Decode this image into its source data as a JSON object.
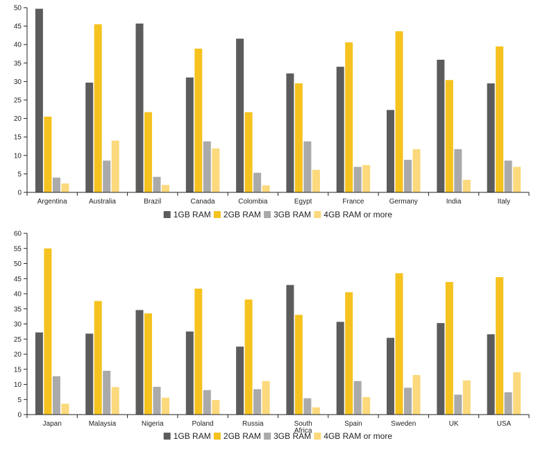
{
  "series_colors": [
    "#5c5c5c",
    "#f5c21f",
    "#aaaaaa",
    "#fbd97c"
  ],
  "chart_data": [
    {
      "type": "bar",
      "title": "",
      "xlabel": "",
      "ylabel": "",
      "ylim": [
        0,
        50
      ],
      "yticks": [
        0,
        5,
        10,
        15,
        20,
        25,
        30,
        35,
        40,
        45,
        50
      ],
      "legend_position": "bottom-center",
      "categories": [
        "Argentina",
        "Australia",
        "Brazil",
        "Canada",
        "Colombia",
        "Egypt",
        "France",
        "Germany",
        "India",
        "Italy"
      ],
      "series": [
        {
          "name": "1GB RAM",
          "values": [
            49.7,
            29.7,
            45.7,
            31.1,
            41.6,
            32.2,
            34.0,
            22.3,
            35.9,
            29.5
          ]
        },
        {
          "name": "2GB RAM",
          "values": [
            20.5,
            45.5,
            21.7,
            38.9,
            21.7,
            29.5,
            40.6,
            43.6,
            30.4,
            39.5
          ]
        },
        {
          "name": "3GB RAM",
          "values": [
            4.0,
            8.6,
            4.2,
            13.8,
            5.3,
            13.8,
            6.9,
            8.8,
            11.7,
            8.6
          ]
        },
        {
          "name": "4GB RAM or more",
          "values": [
            2.4,
            14.0,
            2.0,
            11.9,
            1.9,
            6.1,
            7.4,
            11.7,
            3.4,
            6.9
          ]
        }
      ]
    },
    {
      "type": "bar",
      "title": "",
      "xlabel": "",
      "ylabel": "",
      "ylim": [
        0,
        60
      ],
      "yticks": [
        0,
        5,
        10,
        15,
        20,
        25,
        30,
        35,
        40,
        45,
        50,
        55,
        60
      ],
      "legend_position": "bottom-center",
      "categories": [
        "Japan",
        "Malaysia",
        "Nigeria",
        "Poland",
        "Russia",
        "South Africa",
        "Spain",
        "Sweden",
        "UK",
        "USA"
      ],
      "series": [
        {
          "name": "1GB RAM",
          "values": [
            27.2,
            26.8,
            34.6,
            27.5,
            22.5,
            42.9,
            30.7,
            25.4,
            30.3,
            26.6
          ]
        },
        {
          "name": "2GB RAM",
          "values": [
            55.0,
            37.6,
            33.5,
            41.7,
            38.1,
            33.0,
            40.5,
            46.8,
            43.9,
            45.5
          ]
        },
        {
          "name": "3GB RAM",
          "values": [
            12.7,
            14.5,
            9.2,
            8.1,
            8.4,
            5.4,
            11.1,
            8.9,
            6.6,
            7.4
          ]
        },
        {
          "name": "4GB RAM or more",
          "values": [
            3.6,
            9.1,
            5.6,
            4.8,
            11.1,
            2.4,
            5.8,
            13.1,
            11.3,
            14.0
          ]
        }
      ]
    }
  ]
}
